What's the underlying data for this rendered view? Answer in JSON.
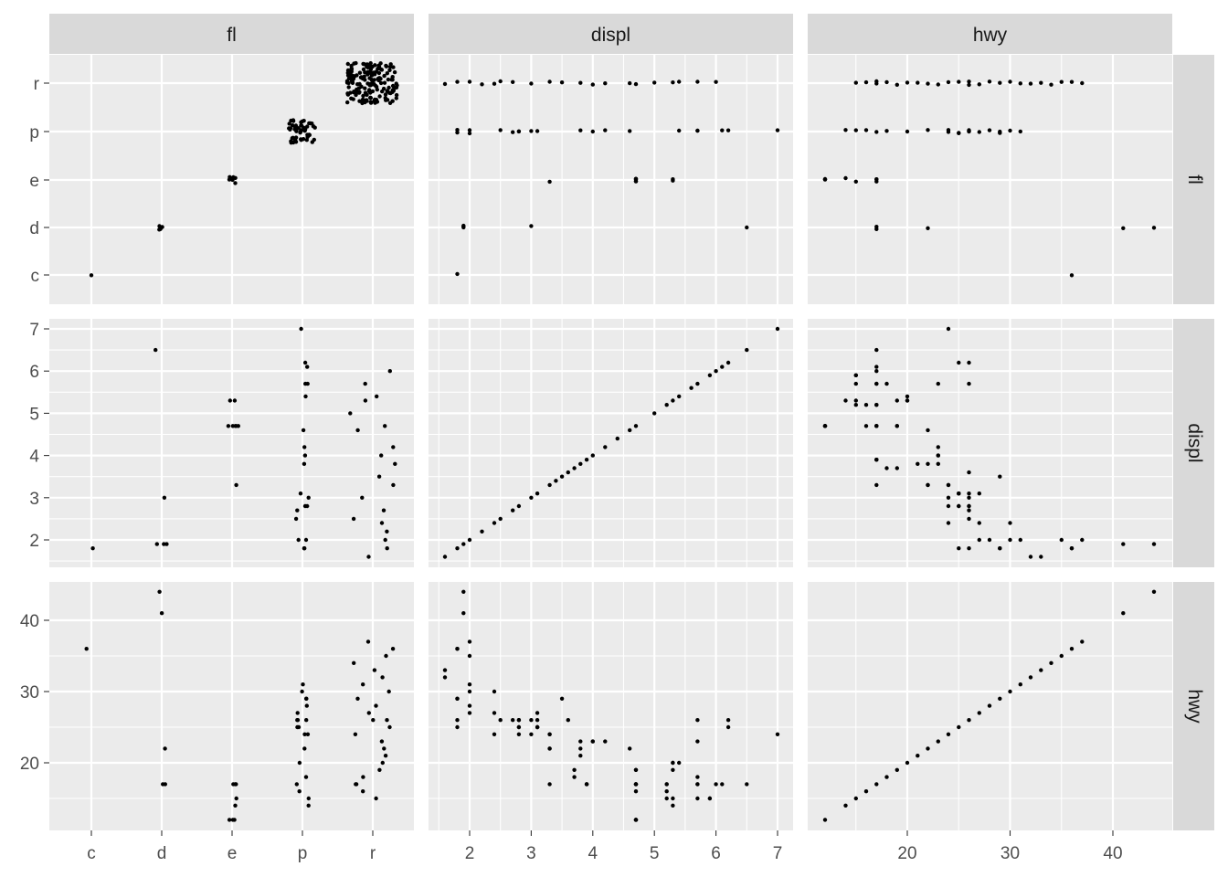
{
  "chart_data": {
    "type": "scatter",
    "layout": "pairs matrix (3 x 3 faceted panels)",
    "source_note": "",
    "variables": [
      {
        "name": "fl",
        "kind": "categorical",
        "levels": [
          "c",
          "d",
          "e",
          "p",
          "r"
        ],
        "counts": {
          "c": 1,
          "d": 5,
          "e": 8,
          "p": 52,
          "r": 168
        }
      },
      {
        "name": "displ",
        "kind": "numeric",
        "range": [
          1.6,
          7.0
        ],
        "ticks": [
          2,
          3,
          4,
          5,
          6,
          7
        ]
      },
      {
        "name": "hwy",
        "kind": "numeric",
        "range": [
          12,
          44
        ],
        "ticks": [
          20,
          30,
          40
        ]
      }
    ],
    "col_strips": [
      "fl",
      "displ",
      "hwy"
    ],
    "row_strips": [
      "fl",
      "displ",
      "hwy"
    ],
    "x_ticks": {
      "fl": [
        "c",
        "d",
        "e",
        "p",
        "r"
      ],
      "displ": [
        "2",
        "3",
        "4",
        "5",
        "6",
        "7"
      ],
      "hwy": [
        "20",
        "30",
        "40"
      ]
    },
    "y_ticks": {
      "fl": [
        "c",
        "d",
        "e",
        "p",
        "r"
      ],
      "displ": [
        "2",
        "3",
        "4",
        "5",
        "6",
        "7"
      ],
      "hwy": [
        "20",
        "30",
        "40"
      ]
    },
    "panels_diagonal": "self-vs-self (jittered strip for fl, identity line for displ and hwy)",
    "sample_points": {
      "displ_by_fl": {
        "c": [
          1.8
        ],
        "d": [
          1.9,
          1.9,
          3.0,
          6.5,
          1.9
        ],
        "e": [
          3.3,
          4.7,
          4.7,
          4.7,
          5.3,
          5.3,
          4.7,
          4.7
        ],
        "p": [
          1.8,
          1.8,
          2.0,
          2.0,
          2.8,
          2.8,
          3.1,
          4.2,
          4.6,
          5.4,
          5.7,
          6.2,
          7.0,
          6.1,
          5.7,
          4.0,
          3.0,
          2.5,
          2.7,
          3.8
        ],
        "r": [
          1.6,
          1.8,
          2.0,
          2.2,
          2.4,
          2.5,
          2.7,
          3.0,
          3.3,
          3.5,
          3.8,
          4.0,
          4.2,
          4.6,
          4.7,
          5.0,
          5.3,
          5.4,
          5.7,
          6.0
        ]
      },
      "hwy_by_fl": {
        "c": [
          36
        ],
        "d": [
          44,
          41,
          22,
          17,
          17
        ],
        "e": [
          12,
          12,
          17,
          17,
          15,
          14,
          12,
          17
        ],
        "p": [
          14,
          15,
          16,
          17,
          18,
          20,
          22,
          24,
          25,
          25,
          26,
          26,
          27,
          28,
          29,
          29,
          30,
          31,
          24,
          26
        ],
        "r": [
          15,
          16,
          17,
          17,
          18,
          19,
          20,
          21,
          22,
          23,
          24,
          25,
          26,
          26,
          27,
          28,
          29,
          30,
          31,
          32,
          33,
          34,
          35,
          36,
          37
        ]
      },
      "hwy_vs_displ": [
        [
          1.8,
          29
        ],
        [
          1.8,
          29
        ],
        [
          2.0,
          31
        ],
        [
          2.0,
          30
        ],
        [
          2.8,
          26
        ],
        [
          2.8,
          26
        ],
        [
          3.1,
          27
        ],
        [
          1.8,
          26
        ],
        [
          1.8,
          25
        ],
        [
          2.0,
          28
        ],
        [
          2.0,
          27
        ],
        [
          2.8,
          25
        ],
        [
          2.8,
          25
        ],
        [
          3.1,
          25
        ],
        [
          3.1,
          25
        ],
        [
          2.8,
          24
        ],
        [
          3.1,
          25
        ],
        [
          4.2,
          23
        ],
        [
          5.3,
          20
        ],
        [
          5.3,
          15
        ],
        [
          5.3,
          20
        ],
        [
          5.7,
          17
        ],
        [
          6.0,
          17
        ],
        [
          5.7,
          26
        ],
        [
          5.7,
          23
        ],
        [
          6.2,
          26
        ],
        [
          6.2,
          25
        ],
        [
          7.0,
          24
        ],
        [
          5.3,
          19
        ],
        [
          5.3,
          14
        ],
        [
          5.7,
          15
        ],
        [
          6.5,
          17
        ],
        [
          2.4,
          27
        ],
        [
          2.4,
          30
        ],
        [
          3.1,
          26
        ],
        [
          3.5,
          29
        ],
        [
          3.6,
          26
        ],
        [
          2.4,
          24
        ],
        [
          3.0,
          24
        ],
        [
          3.3,
          22
        ],
        [
          3.3,
          22
        ],
        [
          3.3,
          24
        ],
        [
          3.3,
          24
        ],
        [
          3.3,
          17
        ],
        [
          3.8,
          22
        ],
        [
          3.8,
          21
        ],
        [
          3.8,
          23
        ],
        [
          4.0,
          23
        ],
        [
          3.7,
          19
        ],
        [
          3.7,
          18
        ],
        [
          3.9,
          17
        ],
        [
          3.9,
          17
        ],
        [
          4.7,
          19
        ],
        [
          4.7,
          19
        ],
        [
          4.7,
          12
        ],
        [
          4.7,
          12
        ],
        [
          5.2,
          17
        ],
        [
          5.2,
          17
        ],
        [
          3.9,
          17
        ],
        [
          4.7,
          17
        ],
        [
          4.7,
          17
        ],
        [
          4.7,
          12
        ],
        [
          5.2,
          16
        ],
        [
          5.7,
          17
        ],
        [
          5.9,
          15
        ],
        [
          4.7,
          17
        ],
        [
          4.7,
          12
        ],
        [
          4.7,
          17
        ],
        [
          4.7,
          16
        ],
        [
          5.2,
          15
        ],
        [
          5.7,
          18
        ],
        [
          5.9,
          15
        ],
        [
          1.9,
          44
        ],
        [
          1.9,
          41
        ],
        [
          1.8,
          36
        ],
        [
          1.8,
          36
        ],
        [
          2.0,
          35
        ],
        [
          2.0,
          37
        ],
        [
          1.6,
          33
        ],
        [
          1.6,
          32
        ],
        [
          2.5,
          26
        ],
        [
          2.7,
          26
        ],
        [
          3.0,
          26
        ],
        [
          4.6,
          22
        ],
        [
          4.0,
          23
        ],
        [
          5.4,
          20
        ],
        [
          6.1,
          17
        ]
      ]
    }
  }
}
